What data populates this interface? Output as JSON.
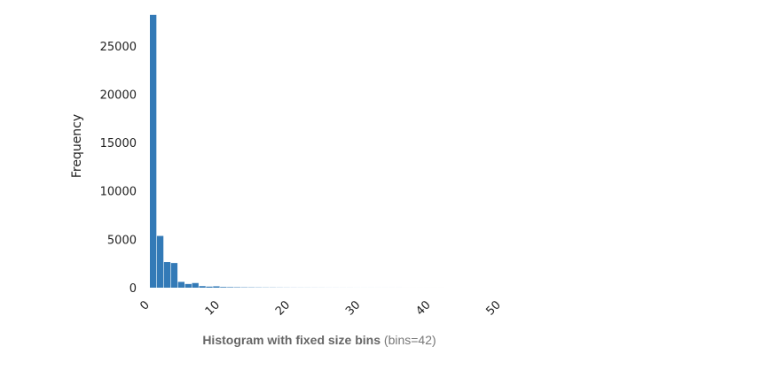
{
  "chart_data": {
    "type": "bar",
    "ylabel": "Frequency",
    "xlabel": "",
    "xlim": [
      0,
      50
    ],
    "ylim": [
      0,
      28000
    ],
    "xticks": [
      0,
      10,
      20,
      30,
      40,
      50
    ],
    "yticks": [
      0,
      5000,
      10000,
      15000,
      20000,
      25000
    ],
    "bin_start": 0,
    "bin_width": 1.0,
    "bins": 42,
    "color": "#337ab7",
    "values": [
      28200,
      5350,
      2650,
      2550,
      600,
      380,
      480,
      160,
      110,
      140,
      70,
      55,
      45,
      35,
      30,
      25,
      20,
      18,
      15,
      12,
      10,
      9,
      8,
      7,
      6,
      5,
      5,
      4,
      4,
      3,
      3,
      3,
      2,
      2,
      2,
      2,
      1,
      1,
      1,
      1,
      1,
      1
    ],
    "grid": false,
    "legend": "none"
  },
  "caption": {
    "title": "Histogram with fixed size bins",
    "detail": "(bins=42)"
  }
}
